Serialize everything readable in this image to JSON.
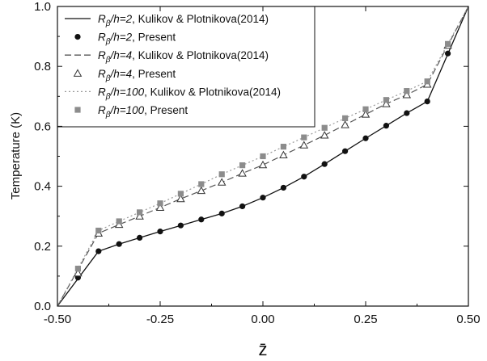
{
  "chart_data": {
    "type": "line",
    "xlabel": "z̄",
    "ylabel": "Temperature (K)",
    "xlim": [
      -0.5,
      0.5
    ],
    "ylim": [
      0.0,
      1.0
    ],
    "xticks": [
      -0.5,
      -0.25,
      0.0,
      0.25,
      0.5
    ],
    "xtick_labels": [
      "-0.50",
      "-0.25",
      "0.00",
      "0.25",
      "0.50"
    ],
    "yticks": [
      0.0,
      0.2,
      0.4,
      0.6,
      0.8,
      1.0
    ],
    "ytick_labels": [
      "0.0",
      "0.2",
      "0.4",
      "0.6",
      "0.8",
      "1.0"
    ],
    "grid": false,
    "legend_position": "top-left",
    "series": [
      {
        "name": "Rβ/h=2, Kulikov & Plotnikova(2014)",
        "label_main": "R",
        "label_sub": "β",
        "label_rest": "/h=2",
        "label_suffix": ", Kulikov & Plotnikova(2014)",
        "style": "solid",
        "marker": "none",
        "color": "#111111",
        "x": [
          -0.5,
          -0.4,
          -0.35,
          -0.3,
          -0.25,
          -0.2,
          -0.15,
          -0.1,
          -0.05,
          0.0,
          0.05,
          0.1,
          0.15,
          0.2,
          0.25,
          0.3,
          0.35,
          0.4,
          0.5
        ],
        "y": [
          0.0,
          0.183,
          0.207,
          0.228,
          0.249,
          0.269,
          0.289,
          0.309,
          0.333,
          0.362,
          0.395,
          0.432,
          0.474,
          0.517,
          0.56,
          0.602,
          0.644,
          0.683,
          1.0
        ]
      },
      {
        "name": "Rβ/h=2, Present",
        "label_main": "R",
        "label_sub": "β",
        "label_rest": "/h=2",
        "label_suffix": ", Present",
        "style": "none",
        "marker": "filled-circle",
        "color": "#111111",
        "x": [
          -0.45,
          -0.4,
          -0.35,
          -0.3,
          -0.25,
          -0.2,
          -0.15,
          -0.1,
          -0.05,
          0.0,
          0.05,
          0.1,
          0.15,
          0.2,
          0.25,
          0.3,
          0.35,
          0.4,
          0.45
        ],
        "y": [
          0.095,
          0.183,
          0.207,
          0.228,
          0.249,
          0.269,
          0.289,
          0.309,
          0.333,
          0.362,
          0.395,
          0.432,
          0.474,
          0.517,
          0.56,
          0.602,
          0.644,
          0.683,
          0.843
        ]
      },
      {
        "name": "Rβ/h=4, Kulikov & Plotnikova(2014)",
        "label_main": "R",
        "label_sub": "β",
        "label_rest": "/h=4",
        "label_suffix": ", Kulikov & Plotnikova(2014)",
        "style": "dashed",
        "marker": "none",
        "color": "#555555",
        "x": [
          -0.5,
          -0.4,
          -0.35,
          -0.3,
          -0.25,
          -0.2,
          -0.15,
          -0.1,
          -0.05,
          0.0,
          0.05,
          0.1,
          0.15,
          0.2,
          0.25,
          0.3,
          0.35,
          0.4,
          0.5
        ],
        "y": [
          0.0,
          0.243,
          0.272,
          0.3,
          0.329,
          0.358,
          0.385,
          0.413,
          0.443,
          0.471,
          0.504,
          0.537,
          0.57,
          0.605,
          0.64,
          0.675,
          0.705,
          0.74,
          1.0
        ]
      },
      {
        "name": "Rβ/h=4, Present",
        "label_main": "R",
        "label_sub": "β",
        "label_rest": "/h=4",
        "label_suffix": ", Present",
        "style": "none",
        "marker": "open-triangle",
        "color": "#333333",
        "x": [
          -0.45,
          -0.4,
          -0.35,
          -0.3,
          -0.25,
          -0.2,
          -0.15,
          -0.1,
          -0.05,
          0.0,
          0.05,
          0.1,
          0.15,
          0.2,
          0.25,
          0.3,
          0.35,
          0.4,
          0.45
        ],
        "y": [
          0.11,
          0.243,
          0.272,
          0.3,
          0.329,
          0.358,
          0.385,
          0.413,
          0.443,
          0.471,
          0.504,
          0.537,
          0.57,
          0.605,
          0.64,
          0.675,
          0.705,
          0.74,
          0.87
        ]
      },
      {
        "name": "Rβ/h=100, Kulikov & Plotnikova(2014)",
        "label_main": "R",
        "label_sub": "β",
        "label_rest": "/h=100",
        "label_suffix": ", Kulikov & Plotnikova(2014)",
        "style": "dash-dot-dot",
        "marker": "none",
        "color": "#999999",
        "x": [
          -0.5,
          -0.4,
          -0.35,
          -0.3,
          -0.25,
          -0.2,
          -0.15,
          -0.1,
          -0.05,
          0.0,
          0.05,
          0.1,
          0.15,
          0.2,
          0.25,
          0.3,
          0.35,
          0.4,
          0.5
        ],
        "y": [
          0.0,
          0.252,
          0.283,
          0.313,
          0.343,
          0.375,
          0.407,
          0.44,
          0.47,
          0.5,
          0.532,
          0.563,
          0.595,
          0.627,
          0.657,
          0.688,
          0.718,
          0.75,
          1.0
        ]
      },
      {
        "name": "Rβ/h=100, Present",
        "label_main": "R",
        "label_sub": "β",
        "label_rest": "/h=100",
        "label_suffix": ", Present",
        "style": "none",
        "marker": "filled-square",
        "color": "#8c8c8c",
        "x": [
          -0.45,
          -0.4,
          -0.35,
          -0.3,
          -0.25,
          -0.2,
          -0.15,
          -0.1,
          -0.05,
          0.0,
          0.05,
          0.1,
          0.15,
          0.2,
          0.25,
          0.3,
          0.35,
          0.4,
          0.45
        ],
        "y": [
          0.125,
          0.252,
          0.283,
          0.313,
          0.343,
          0.375,
          0.407,
          0.44,
          0.47,
          0.5,
          0.532,
          0.563,
          0.595,
          0.627,
          0.657,
          0.688,
          0.718,
          0.75,
          0.875
        ]
      }
    ]
  }
}
